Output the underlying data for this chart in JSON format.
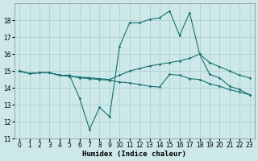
{
  "xlabel": "Humidex (Indice chaleur)",
  "bg_color": "#cce8e8",
  "grid_color": "#aacccc",
  "line_color": "#1a7070",
  "line1": {
    "x": [
      0,
      1,
      2,
      3,
      4,
      5,
      6,
      7,
      8,
      9,
      10,
      11,
      12,
      13,
      14,
      15,
      16,
      17,
      18,
      19,
      20,
      21,
      22,
      23
    ],
    "y": [
      15.0,
      14.85,
      14.9,
      14.9,
      14.75,
      14.75,
      13.4,
      11.55,
      12.85,
      12.3,
      16.45,
      17.85,
      17.85,
      18.05,
      18.15,
      18.55,
      17.1,
      18.45,
      16.0,
      14.8,
      14.6,
      14.1,
      13.9,
      13.6
    ]
  },
  "line2": {
    "x": [
      0,
      1,
      2,
      3,
      4,
      5,
      6,
      7,
      8,
      9,
      10,
      11,
      12,
      13,
      14,
      15,
      16,
      17,
      18,
      19,
      20,
      21,
      22,
      23
    ],
    "y": [
      15.0,
      14.85,
      14.9,
      14.9,
      14.75,
      14.7,
      14.65,
      14.6,
      14.55,
      14.5,
      14.75,
      15.0,
      15.15,
      15.3,
      15.4,
      15.5,
      15.6,
      15.75,
      16.0,
      15.5,
      15.25,
      15.0,
      14.75,
      14.6
    ]
  },
  "line3": {
    "x": [
      0,
      1,
      2,
      3,
      4,
      5,
      6,
      7,
      8,
      9,
      10,
      11,
      12,
      13,
      14,
      15,
      16,
      17,
      18,
      19,
      20,
      21,
      22,
      23
    ],
    "y": [
      15.0,
      14.85,
      14.9,
      14.9,
      14.75,
      14.7,
      14.6,
      14.55,
      14.5,
      14.45,
      14.35,
      14.3,
      14.2,
      14.1,
      14.05,
      14.8,
      14.75,
      14.55,
      14.5,
      14.25,
      14.1,
      13.9,
      13.75,
      13.6
    ]
  },
  "ylim": [
    11,
    19
  ],
  "xlim": [
    -0.5,
    23.5
  ],
  "yticks": [
    11,
    12,
    13,
    14,
    15,
    16,
    17,
    18
  ],
  "xticks": [
    0,
    1,
    2,
    3,
    4,
    5,
    6,
    7,
    8,
    9,
    10,
    11,
    12,
    13,
    14,
    15,
    16,
    17,
    18,
    19,
    20,
    21,
    22,
    23
  ]
}
